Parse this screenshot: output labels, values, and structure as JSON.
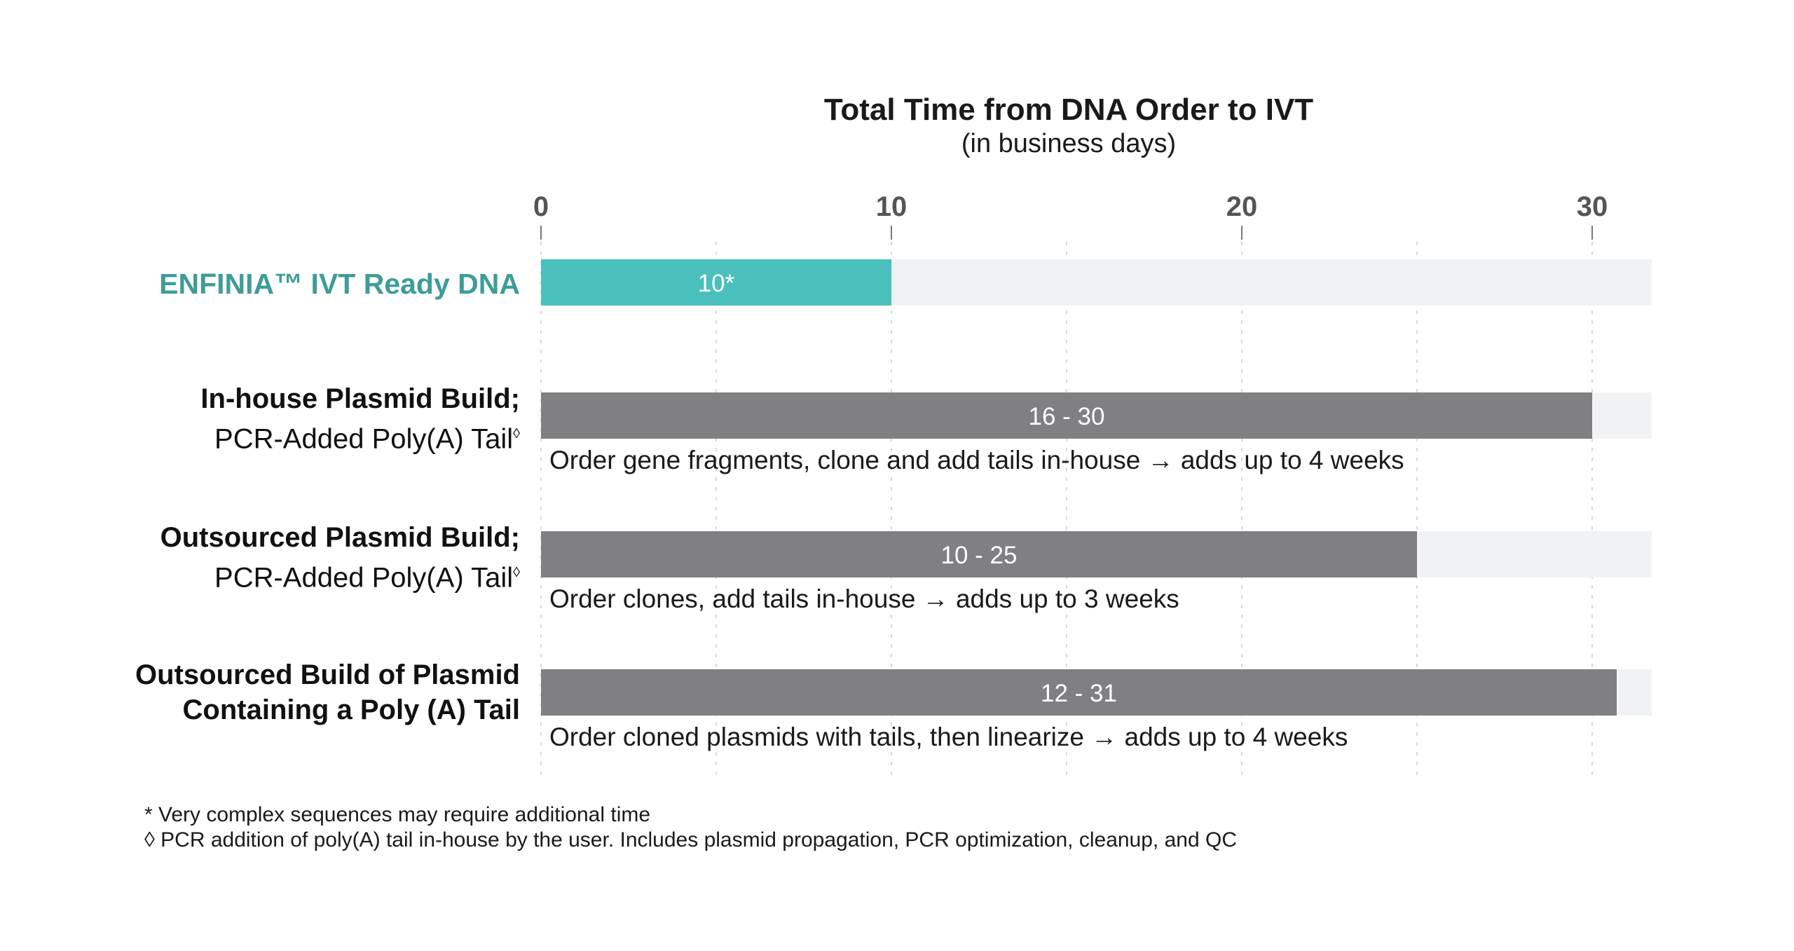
{
  "chart_data": {
    "type": "bar",
    "orientation": "horizontal",
    "title": "Total Time from DNA Order to IVT",
    "subtitle": "(in business days)",
    "xticks": [
      0,
      10,
      20,
      30
    ],
    "xlim": [
      0,
      31.7
    ],
    "grid": "dashed vertical at every 5",
    "categories": [
      {
        "line1": "ENFINIA™ IVT Ready DNA",
        "line2": "",
        "value": 10,
        "value_label": "10*",
        "color": "#49c0bb",
        "note": ""
      },
      {
        "line1": "In-house Plasmid Build;",
        "line2": "PCR-Added Poly(A) Tail",
        "line2_mark": "◊",
        "value": 30,
        "value_label": "16 - 30",
        "color": "#808083",
        "note": "Order gene fragments, clone and add tails in-house → adds up to 4 weeks"
      },
      {
        "line1": "Outsourced Plasmid Build;",
        "line2": "PCR-Added Poly(A) Tail",
        "line2_mark": "◊",
        "value": 25,
        "value_label": "10 - 25",
        "color": "#808083",
        "note": "Order clones, add tails in-house → adds up to 3 weeks"
      },
      {
        "line1": "Outsourced Build of Plasmid",
        "line2": "Containing a Poly (A) Tail",
        "value": 30.7,
        "value_label": "12 - 31",
        "color": "#808083",
        "note": "Order cloned plasmids with tails, then linearize → adds up to 4 weeks"
      }
    ],
    "track_color": "#f1f2f3"
  },
  "footnotes": [
    "* Very complex sequences may require additional time",
    "◊ PCR addition of poly(A) tail in-house by the user. Includes plasmid propagation, PCR optimization, cleanup, and QC"
  ]
}
